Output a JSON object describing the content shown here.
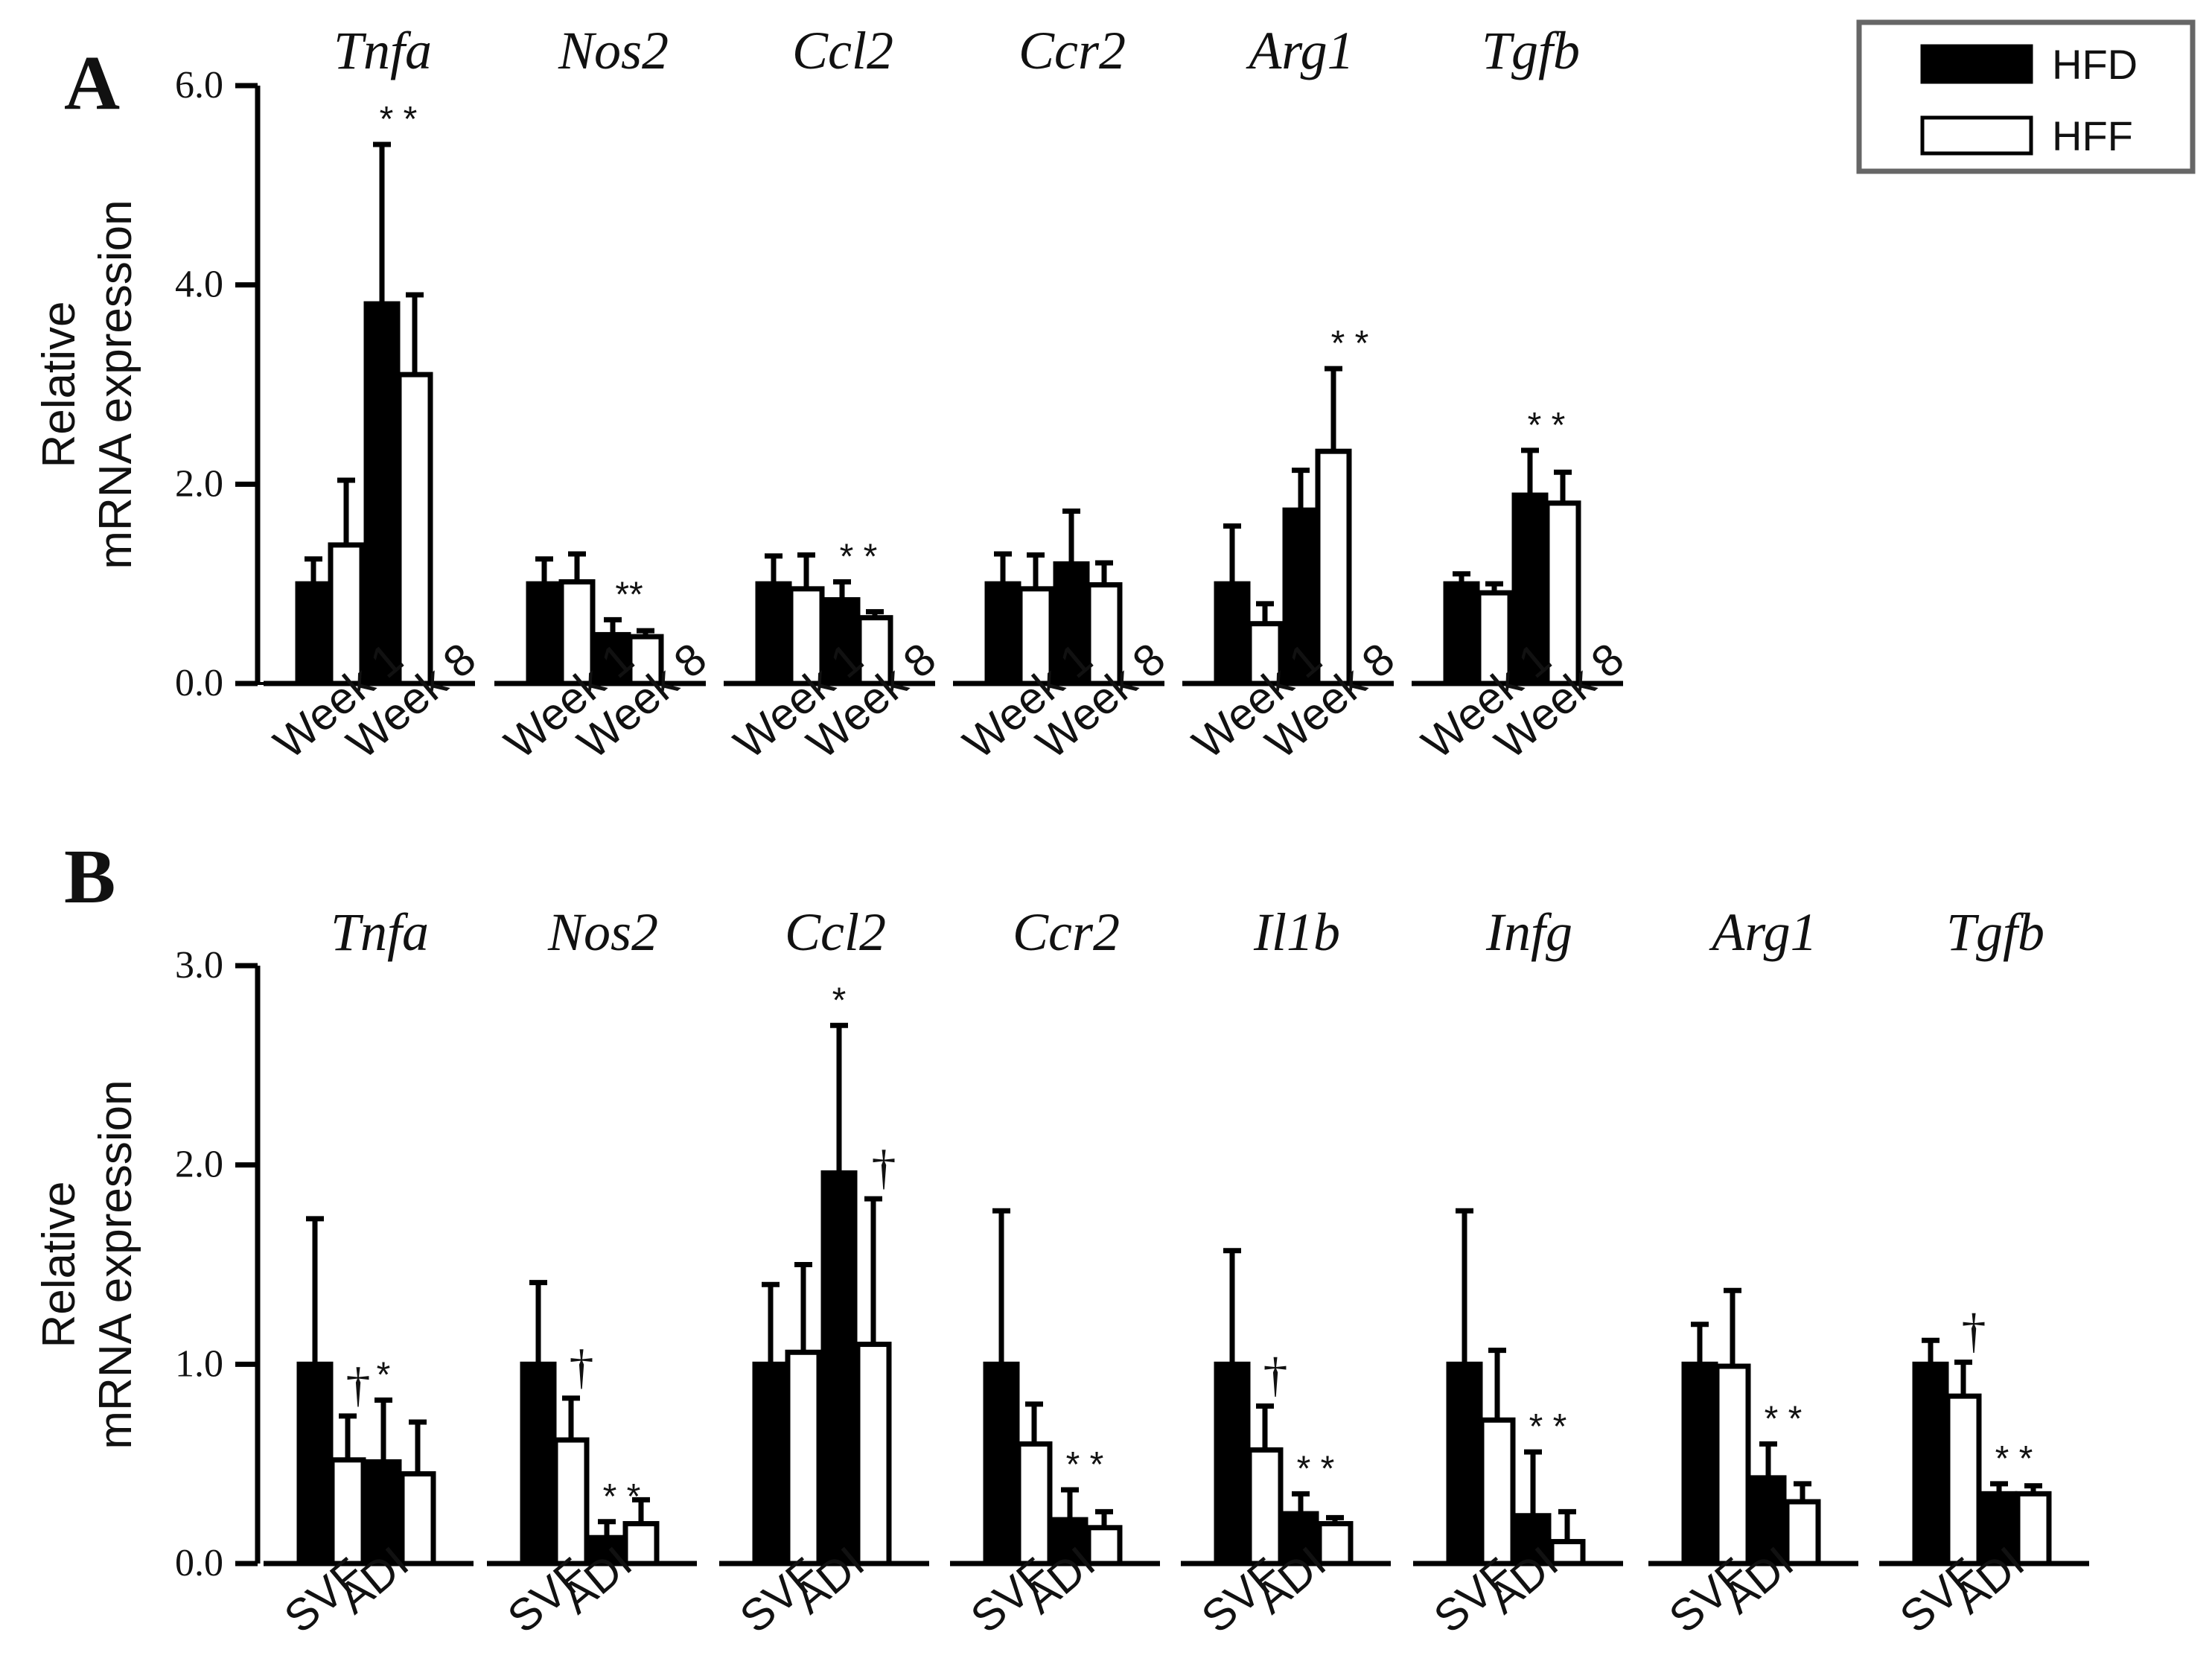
{
  "colors": {
    "hfd": "#000000",
    "hff": "#ffffff",
    "stroke": "#000000",
    "legend_border": "#666666"
  },
  "legend": {
    "items": [
      {
        "label": "HFD",
        "fill": "#000000"
      },
      {
        "label": "HFF",
        "fill": "#ffffff"
      }
    ]
  },
  "chart_data": [
    {
      "panel": "A",
      "type": "bar",
      "ylabel": [
        "Relative",
        "mRNA expression"
      ],
      "ylim": [
        0,
        6
      ],
      "yticks": [
        "0.0",
        "2.0",
        "4.0",
        "6.0"
      ],
      "categories": [
        "Week 1",
        "Week 8"
      ],
      "series_names": [
        "HFD",
        "HFF"
      ],
      "groups": [
        {
          "gene": "Tnfa",
          "values": [
            [
              1.0,
              1.39
            ],
            [
              3.81,
              3.1
            ]
          ],
          "errors": [
            [
              0.25,
              0.65
            ],
            [
              1.6,
              0.8
            ]
          ],
          "annotations": [
            {
              "text": "* *",
              "at": [
                1,
                0
              ],
              "kind": "sig"
            }
          ]
        },
        {
          "gene": "Nos2",
          "values": [
            [
              1.0,
              1.02
            ],
            [
              0.49,
              0.47
            ]
          ],
          "errors": [
            [
              0.25,
              0.28
            ],
            [
              0.15,
              0.06
            ]
          ],
          "annotations": [
            {
              "text": "**",
              "at": [
                1,
                0
              ],
              "kind": "sig"
            }
          ]
        },
        {
          "gene": "Ccl2",
          "values": [
            [
              1.0,
              0.95
            ],
            [
              0.84,
              0.66
            ]
          ],
          "errors": [
            [
              0.28,
              0.34
            ],
            [
              0.18,
              0.06
            ]
          ],
          "annotations": [
            {
              "text": "* *",
              "at": [
                1,
                0
              ],
              "kind": "sig"
            }
          ]
        },
        {
          "gene": "Ccr2",
          "values": [
            [
              1.0,
              0.95
            ],
            [
              1.2,
              0.99
            ]
          ],
          "errors": [
            [
              0.3,
              0.34
            ],
            [
              0.53,
              0.22
            ]
          ],
          "annotations": []
        },
        {
          "gene": "Arg1",
          "values": [
            [
              1.0,
              0.6
            ],
            [
              1.74,
              2.33
            ]
          ],
          "errors": [
            [
              0.58,
              0.2
            ],
            [
              0.4,
              0.83
            ]
          ],
          "annotations": [
            {
              "text": "* *",
              "at": [
                1,
                1
              ],
              "kind": "sig"
            }
          ]
        },
        {
          "gene": "Tgfb",
          "values": [
            [
              1.0,
              0.91
            ],
            [
              1.89,
              1.81
            ]
          ],
          "errors": [
            [
              0.1,
              0.09
            ],
            [
              0.45,
              0.31
            ]
          ],
          "annotations": [
            {
              "text": "* *",
              "at": [
                1,
                0
              ],
              "kind": "sig"
            }
          ]
        }
      ]
    },
    {
      "panel": "B",
      "type": "bar",
      "ylabel": [
        "Relative",
        "mRNA expression"
      ],
      "ylim": [
        0,
        3
      ],
      "yticks": [
        "0.0",
        "1.0",
        "2.0",
        "3.0"
      ],
      "categories": [
        "SVF",
        "ADI"
      ],
      "series_names": [
        "HFD",
        "HFF"
      ],
      "groups": [
        {
          "gene": "Tnfa",
          "values": [
            [
              1.0,
              0.52
            ],
            [
              0.51,
              0.45
            ]
          ],
          "errors": [
            [
              0.73,
              0.22
            ],
            [
              0.31,
              0.26
            ]
          ],
          "annotations": [
            {
              "text": "†",
              "at": [
                0,
                1
              ],
              "kind": "dag"
            },
            {
              "text": "*",
              "at": [
                1,
                0
              ],
              "kind": "sig"
            }
          ]
        },
        {
          "gene": "Nos2",
          "values": [
            [
              1.0,
              0.62
            ],
            [
              0.13,
              0.2
            ]
          ],
          "errors": [
            [
              0.41,
              0.21
            ],
            [
              0.08,
              0.12
            ]
          ],
          "annotations": [
            {
              "text": "†",
              "at": [
                0,
                1
              ],
              "kind": "dag"
            },
            {
              "text": "* *",
              "at": [
                1,
                0
              ],
              "kind": "sig"
            }
          ]
        },
        {
          "gene": "Ccl2",
          "values": [
            [
              1.0,
              1.06
            ],
            [
              1.96,
              1.1
            ]
          ],
          "errors": [
            [
              0.4,
              0.44
            ],
            [
              0.74,
              0.73
            ]
          ],
          "annotations": [
            {
              "text": "*",
              "at": [
                1,
                0
              ],
              "kind": "sig"
            },
            {
              "text": "†",
              "at": [
                1,
                1
              ],
              "kind": "dag"
            }
          ]
        },
        {
          "gene": "Ccr2",
          "values": [
            [
              1.0,
              0.6
            ],
            [
              0.22,
              0.18
            ]
          ],
          "errors": [
            [
              0.77,
              0.2
            ],
            [
              0.15,
              0.08
            ]
          ],
          "annotations": [
            {
              "text": "* *",
              "at": [
                1,
                0
              ],
              "kind": "sig"
            }
          ]
        },
        {
          "gene": "Il1b",
          "values": [
            [
              1.0,
              0.57
            ],
            [
              0.25,
              0.2
            ]
          ],
          "errors": [
            [
              0.57,
              0.22
            ],
            [
              0.1,
              0.03
            ]
          ],
          "annotations": [
            {
              "text": "†",
              "at": [
                0,
                1
              ],
              "kind": "dag"
            },
            {
              "text": "* *",
              "at": [
                1,
                0
              ],
              "kind": "sig"
            }
          ]
        },
        {
          "gene": "Infg",
          "values": [
            [
              1.0,
              0.72
            ],
            [
              0.24,
              0.11
            ]
          ],
          "errors": [
            [
              0.77,
              0.35
            ],
            [
              0.32,
              0.15
            ]
          ],
          "annotations": [
            {
              "text": "* *",
              "at": [
                1,
                0
              ],
              "kind": "sig"
            }
          ]
        },
        {
          "gene": "Arg1",
          "values": [
            [
              1.0,
              0.99
            ],
            [
              0.43,
              0.31
            ]
          ],
          "errors": [
            [
              0.2,
              0.38
            ],
            [
              0.17,
              0.09
            ]
          ],
          "annotations": [
            {
              "text": "* *",
              "at": [
                1,
                0
              ],
              "kind": "sig"
            }
          ]
        },
        {
          "gene": "Tgfb",
          "values": [
            [
              1.0,
              0.84
            ],
            [
              0.35,
              0.35
            ]
          ],
          "errors": [
            [
              0.12,
              0.17
            ],
            [
              0.05,
              0.04
            ]
          ],
          "annotations": [
            {
              "text": "†",
              "at": [
                0,
                1
              ],
              "kind": "dag"
            },
            {
              "text": "* *",
              "at": [
                1,
                0
              ],
              "kind": "sig"
            }
          ]
        }
      ]
    }
  ]
}
